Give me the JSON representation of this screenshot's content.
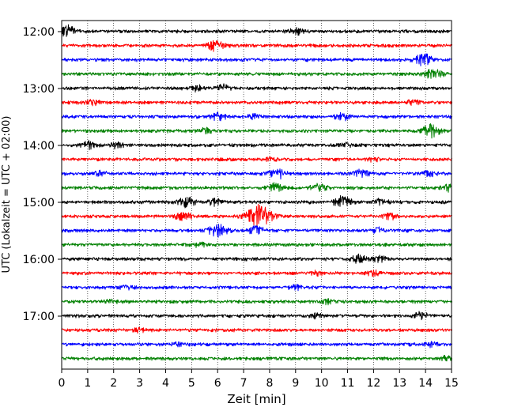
{
  "chart_data": {
    "type": "line",
    "chart_kind": "helicorder",
    "xlabel": "Zeit  [min]",
    "ylabel": "UTC (Lokalzeit = UTC + 02:00)",
    "xlim": [
      0,
      15
    ],
    "x_ticks": [
      0,
      1,
      2,
      3,
      4,
      5,
      6,
      7,
      8,
      9,
      10,
      11,
      12,
      13,
      14,
      15
    ],
    "x_tick_labels": [
      "0",
      "1",
      "2",
      "3",
      "4",
      "5",
      "6",
      "7",
      "8",
      "9",
      "10",
      "11",
      "12",
      "13",
      "14",
      "15"
    ],
    "y_ticks": [
      {
        "label": "12:00",
        "trace_index": 0
      },
      {
        "label": "13:00",
        "trace_index": 4
      },
      {
        "label": "14:00",
        "trace_index": 8
      },
      {
        "label": "15:00",
        "trace_index": 12
      },
      {
        "label": "16:00",
        "trace_index": 16
      },
      {
        "label": "17:00",
        "trace_index": 20
      }
    ],
    "trace_interval_minutes": 15,
    "vertical_grid": "dotted",
    "series_colors": [
      "#000000",
      "#ff0000",
      "#0000ff",
      "#008000"
    ],
    "traces": [
      {
        "start": "12:00",
        "events": [
          {
            "t": 0.2,
            "amp": 1.0
          },
          {
            "t": 9.0,
            "amp": 0.5
          }
        ]
      },
      {
        "start": "12:15",
        "events": [
          {
            "t": 5.9,
            "amp": 0.8
          }
        ]
      },
      {
        "start": "12:30",
        "events": [
          {
            "t": 13.9,
            "amp": 1.0
          }
        ]
      },
      {
        "start": "12:45",
        "events": [
          {
            "t": 14.3,
            "amp": 0.8
          }
        ]
      },
      {
        "start": "13:00",
        "events": [
          {
            "t": 6.2,
            "amp": 0.6
          },
          {
            "t": 5.2,
            "amp": 0.4
          }
        ]
      },
      {
        "start": "13:15",
        "events": [
          {
            "t": 1.2,
            "amp": 0.4
          },
          {
            "t": 13.5,
            "amp": 0.4
          }
        ]
      },
      {
        "start": "13:30",
        "events": [
          {
            "t": 6.0,
            "amp": 0.6
          },
          {
            "t": 10.8,
            "amp": 0.6
          },
          {
            "t": 7.4,
            "amp": 0.4
          }
        ]
      },
      {
        "start": "13:45",
        "events": [
          {
            "t": 14.2,
            "amp": 1.0
          },
          {
            "t": 5.5,
            "amp": 0.4
          }
        ]
      },
      {
        "start": "14:00",
        "events": [
          {
            "t": 1.0,
            "amp": 0.6
          },
          {
            "t": 2.1,
            "amp": 0.4
          },
          {
            "t": 10.9,
            "amp": 0.3
          }
        ]
      },
      {
        "start": "14:15",
        "events": [
          {
            "t": 8.0,
            "amp": 0.3
          },
          {
            "t": 12.0,
            "amp": 0.3
          }
        ]
      },
      {
        "start": "14:30",
        "events": [
          {
            "t": 8.3,
            "amp": 0.8
          },
          {
            "t": 11.5,
            "amp": 0.6
          },
          {
            "t": 14.1,
            "amp": 0.5
          },
          {
            "t": 1.5,
            "amp": 0.4
          }
        ]
      },
      {
        "start": "14:45",
        "events": [
          {
            "t": 8.2,
            "amp": 0.7
          },
          {
            "t": 9.9,
            "amp": 0.7
          },
          {
            "t": 14.9,
            "amp": 0.6
          }
        ]
      },
      {
        "start": "15:00",
        "events": [
          {
            "t": 4.8,
            "amp": 0.8
          },
          {
            "t": 10.8,
            "amp": 0.9
          },
          {
            "t": 12.3,
            "amp": 0.5
          },
          {
            "t": 5.9,
            "amp": 0.5
          }
        ]
      },
      {
        "start": "15:15",
        "events": [
          {
            "t": 7.6,
            "amp": 1.8
          },
          {
            "t": 4.7,
            "amp": 0.7
          },
          {
            "t": 12.6,
            "amp": 0.5
          }
        ]
      },
      {
        "start": "15:30",
        "events": [
          {
            "t": 6.0,
            "amp": 1.0
          },
          {
            "t": 7.5,
            "amp": 0.7
          },
          {
            "t": 12.2,
            "amp": 0.4
          }
        ]
      },
      {
        "start": "15:45",
        "events": [
          {
            "t": 5.3,
            "amp": 0.3
          }
        ]
      },
      {
        "start": "16:00",
        "events": [
          {
            "t": 11.4,
            "amp": 0.6
          },
          {
            "t": 12.2,
            "amp": 0.5
          }
        ]
      },
      {
        "start": "16:15",
        "events": [
          {
            "t": 12.0,
            "amp": 0.4
          },
          {
            "t": 9.8,
            "amp": 0.3
          }
        ]
      },
      {
        "start": "16:30",
        "events": [
          {
            "t": 9.0,
            "amp": 0.4
          },
          {
            "t": 2.5,
            "amp": 0.3
          }
        ]
      },
      {
        "start": "16:45",
        "events": [
          {
            "t": 10.2,
            "amp": 0.3
          },
          {
            "t": 1.8,
            "amp": 0.3
          }
        ]
      },
      {
        "start": "17:00",
        "events": [
          {
            "t": 13.8,
            "amp": 0.6
          },
          {
            "t": 9.8,
            "amp": 0.4
          }
        ]
      },
      {
        "start": "17:15",
        "events": [
          {
            "t": 3.0,
            "amp": 0.3
          }
        ]
      },
      {
        "start": "17:30",
        "events": [
          {
            "t": 14.2,
            "amp": 0.3
          },
          {
            "t": 4.5,
            "amp": 0.3
          }
        ]
      },
      {
        "start": "17:45",
        "events": [
          {
            "t": 14.8,
            "amp": 0.4
          }
        ]
      }
    ]
  }
}
